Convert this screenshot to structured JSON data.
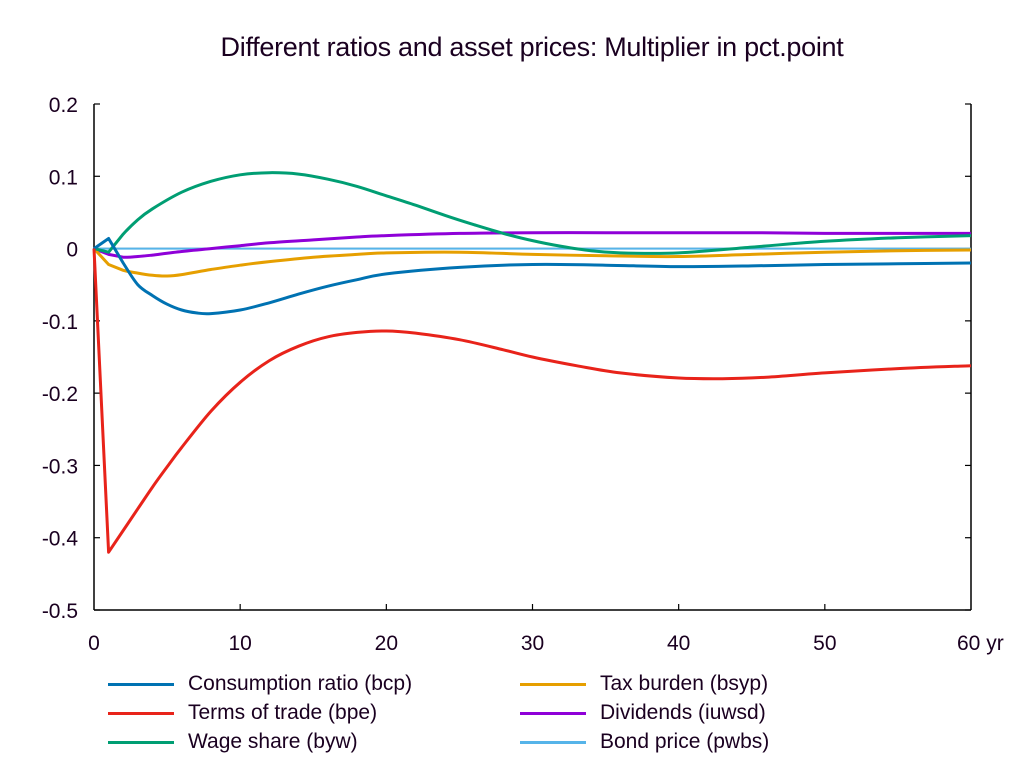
{
  "chart_data": {
    "type": "line",
    "title": "Different ratios and asset prices: Multiplier in pct.point",
    "xlabel": "",
    "ylabel": "",
    "xlim": [
      0,
      60
    ],
    "ylim": [
      -0.5,
      0.2
    ],
    "x_ticks": [
      0,
      10,
      20,
      30,
      40,
      50,
      60
    ],
    "x_tick_labels": [
      "0",
      "10",
      "20",
      "30",
      "40",
      "50",
      "60 yr"
    ],
    "y_ticks": [
      0.2,
      0.1,
      0,
      -0.1,
      -0.2,
      -0.3,
      -0.4,
      -0.5
    ],
    "y_tick_labels": [
      "0.2",
      "0.1",
      "0",
      "-0.1",
      "-0.2",
      "-0.3",
      "-0.4",
      "-0.5"
    ],
    "grid": false,
    "legend_position": "bottom",
    "zero_line": true,
    "series": [
      {
        "name": "Consumption ratio (bcp)",
        "color": "#0072b2",
        "x": [
          0,
          1,
          2,
          3,
          4,
          5,
          6,
          7,
          8,
          10,
          12,
          14,
          16,
          18,
          20,
          25,
          30,
          35,
          40,
          45,
          50,
          55,
          60
        ],
        "y": [
          0,
          0.014,
          -0.02,
          -0.05,
          -0.065,
          -0.077,
          -0.085,
          -0.089,
          -0.09,
          -0.085,
          -0.075,
          -0.063,
          -0.052,
          -0.043,
          -0.035,
          -0.026,
          -0.022,
          -0.023,
          -0.025,
          -0.024,
          -0.022,
          -0.021,
          -0.02
        ]
      },
      {
        "name": "Terms of trade (bpe)",
        "color": "#e8231a",
        "x": [
          0,
          1,
          2,
          3,
          4,
          5,
          6,
          8,
          10,
          12,
          14,
          16,
          18,
          20,
          22,
          25,
          28,
          30,
          33,
          36,
          40,
          43,
          46,
          50,
          55,
          60
        ],
        "y": [
          0,
          -0.42,
          -0.39,
          -0.36,
          -0.33,
          -0.302,
          -0.275,
          -0.225,
          -0.185,
          -0.155,
          -0.135,
          -0.122,
          -0.116,
          -0.114,
          -0.117,
          -0.126,
          -0.14,
          -0.15,
          -0.162,
          -0.172,
          -0.179,
          -0.18,
          -0.178,
          -0.172,
          -0.166,
          -0.162
        ]
      },
      {
        "name": "Wage share (byw)",
        "color": "#009e73",
        "x": [
          0,
          1,
          2,
          3,
          4,
          6,
          8,
          10,
          12,
          14,
          16,
          18,
          20,
          22,
          24,
          26,
          28,
          30,
          32,
          34,
          36,
          40,
          45,
          50,
          55,
          60
        ],
        "y": [
          0,
          -0.005,
          0.02,
          0.04,
          0.055,
          0.078,
          0.093,
          0.102,
          0.105,
          0.103,
          0.096,
          0.086,
          0.073,
          0.06,
          0.046,
          0.033,
          0.021,
          0.011,
          0.003,
          -0.003,
          -0.006,
          -0.006,
          0.002,
          0.01,
          0.015,
          0.018
        ]
      },
      {
        "name": "Tax burden (bsyp)",
        "color": "#e69f00",
        "x": [
          0,
          1,
          2,
          3,
          4,
          5,
          6,
          8,
          10,
          12,
          15,
          18,
          20,
          25,
          30,
          35,
          40,
          45,
          50,
          55,
          60
        ],
        "y": [
          0,
          -0.022,
          -0.03,
          -0.034,
          -0.037,
          -0.038,
          -0.036,
          -0.029,
          -0.023,
          -0.018,
          -0.012,
          -0.008,
          -0.006,
          -0.005,
          -0.008,
          -0.01,
          -0.011,
          -0.008,
          -0.005,
          -0.003,
          -0.002
        ]
      },
      {
        "name": "Dividends (iuwsd)",
        "color": "#8f00d8",
        "x": [
          0,
          1,
          2,
          3,
          4,
          6,
          8,
          10,
          12,
          15,
          18,
          20,
          25,
          30,
          35,
          40,
          45,
          50,
          55,
          60
        ],
        "y": [
          0,
          -0.008,
          -0.012,
          -0.011,
          -0.009,
          -0.004,
          0.0,
          0.004,
          0.008,
          0.012,
          0.016,
          0.018,
          0.021,
          0.022,
          0.022,
          0.022,
          0.022,
          0.021,
          0.021,
          0.021
        ]
      },
      {
        "name": "Bond price (pwbs)",
        "color": "#56b4e9",
        "x": [
          0,
          60
        ],
        "y": [
          0,
          0
        ]
      }
    ]
  }
}
